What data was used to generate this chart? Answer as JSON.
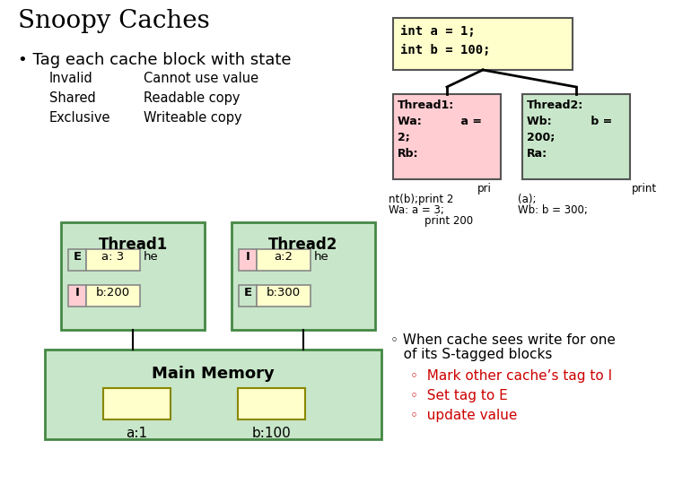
{
  "title": "Snoopy Caches",
  "bullet1": "• Tag each cache block with state",
  "states": [
    [
      "Invalid",
      "Cannot use value"
    ],
    [
      "Shared",
      "Readable copy"
    ],
    [
      "Exclusive",
      "Writeable copy"
    ]
  ],
  "code_box_text": "int a = 1;\nint b = 100;",
  "thread1_box_text": "Thread1:\nWa:          a =\n2;\nRb:",
  "thread2_box_text": "Thread2:\nWb:          b =\n200;\nRa:",
  "below_thread1_line1": "pri",
  "below_thread1_line2": "nt(b);print 2",
  "below_thread1_line3": "Wa: a = 3;",
  "below_thread1_line4": "    print 200",
  "below_thread2_line1": "print",
  "below_thread2_line2": "(a);",
  "below_thread2_line3": "Wb: b = 300;",
  "cache_thread1_label": "Thread1",
  "cache_thread2_label": "Thread2",
  "main_memory_label": "Main Memory",
  "cache_thread1_rows": [
    {
      "state": "E",
      "state_color": "#c8e6c9",
      "label": "a: 3",
      "extra": "he"
    },
    {
      "state": "I",
      "state_color": "#ffcdd2",
      "label": "b:200",
      "extra": ""
    }
  ],
  "cache_thread2_rows": [
    {
      "state": "I",
      "state_color": "#ffcdd2",
      "label": "a:2",
      "extra": "he"
    },
    {
      "state": "E",
      "state_color": "#c8e6c9",
      "label": "b:300",
      "extra": ""
    }
  ],
  "main_memory_items": [
    "a:1",
    "b:100"
  ],
  "bullet2_line1": "◦ When cache sees write for one",
  "bullet2_line2": "   of its S-tagged blocks",
  "sub_bullets": [
    "◦  Mark other cache’s tag to I",
    "◦  Set tag to E",
    "◦  update value"
  ],
  "bg_color": "#ffffff",
  "code_box_color": "#ffffcc",
  "thread1_box_color": "#ffcdd2",
  "thread2_box_color": "#c8e6c9",
  "cache_outer_color": "#c8e6c9",
  "cache_inner_color": "#ffffcc",
  "main_memory_color": "#c8e6c9",
  "main_memory_item_color": "#ffffcc",
  "state_E_color": "#c8e6c9",
  "state_I_color": "#ffcdd2"
}
